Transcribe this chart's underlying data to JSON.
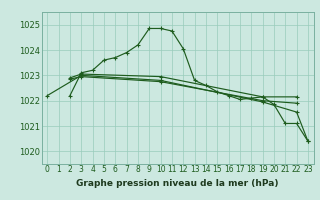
{
  "background_color": "#cce8e0",
  "grid_color": "#99ccbb",
  "line_color": "#1e5c1e",
  "xlabel": "Graphe pression niveau de la mer (hPa)",
  "ylim": [
    1019.5,
    1025.5
  ],
  "yticks": [
    1020,
    1021,
    1022,
    1023,
    1024,
    1025
  ],
  "xlim": [
    -0.5,
    23.5
  ],
  "xticks": [
    0,
    1,
    2,
    3,
    4,
    5,
    6,
    7,
    8,
    9,
    10,
    11,
    12,
    13,
    14,
    15,
    16,
    17,
    18,
    19,
    20,
    21,
    22,
    23
  ],
  "series1": {
    "x": [
      2,
      3,
      4,
      5,
      6,
      7,
      8,
      9,
      10,
      11,
      12,
      13,
      14,
      15,
      16,
      17,
      18,
      19,
      20,
      21,
      22,
      23
    ],
    "y": [
      1022.2,
      1023.1,
      1023.2,
      1023.6,
      1023.7,
      1023.9,
      1024.2,
      1024.85,
      1024.85,
      1024.75,
      1024.05,
      1022.8,
      1022.6,
      1022.35,
      1022.2,
      1022.05,
      1022.1,
      1022.15,
      1021.85,
      1021.1,
      1021.1,
      1020.4
    ]
  },
  "series2": {
    "x": [
      2,
      3,
      10,
      19,
      22
    ],
    "y": [
      1022.9,
      1023.05,
      1022.95,
      1022.15,
      1022.15
    ]
  },
  "series3": {
    "x": [
      2,
      3,
      10,
      19,
      22
    ],
    "y": [
      1022.85,
      1022.95,
      1022.75,
      1022.0,
      1021.9
    ]
  },
  "series4": {
    "x": [
      0,
      3,
      10,
      19,
      22,
      23
    ],
    "y": [
      1022.2,
      1023.0,
      1022.8,
      1021.95,
      1021.55,
      1020.4
    ]
  },
  "spine_color": "#7ab0a0",
  "tick_color": "#1e5c1e",
  "label_color": "#1e3a1e",
  "ytick_fontsize": 6.0,
  "xtick_fontsize": 5.5,
  "xlabel_fontsize": 6.5
}
